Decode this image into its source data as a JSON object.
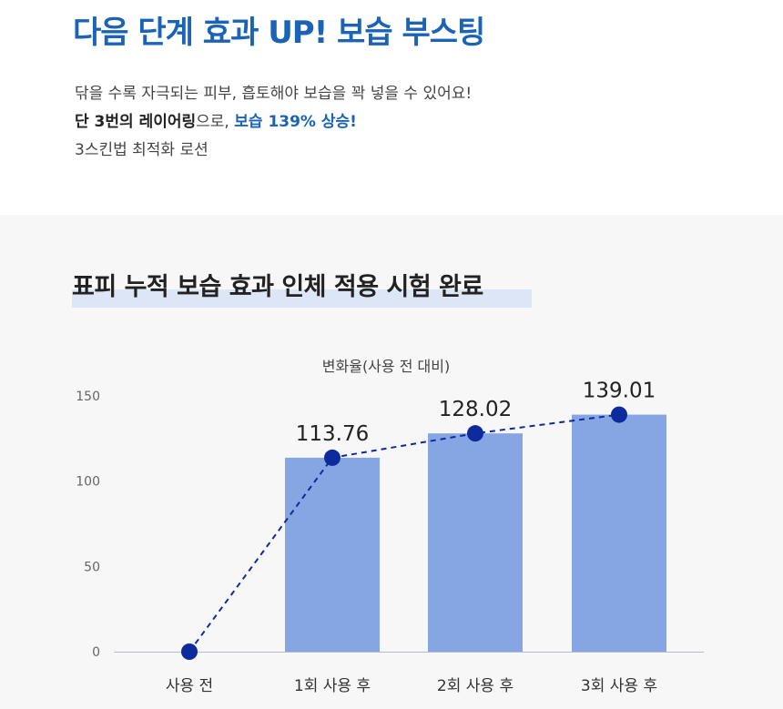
{
  "header": {
    "title": "다음 단계 효과 UP! 보습 부스팅",
    "line1": "닦을 수록 자극되는 피부, 흡토해야 보습을 꽉 넣을 수 있어요!",
    "line2_bold": "단 3번의 레이어링",
    "line2_mid": "으로, ",
    "line2_highlight": "보습 139% 상승!",
    "line3": "3스킨법 최적화 로션"
  },
  "section": {
    "title": "표피 누적 보습 효과 인체 적용 시험 완료"
  },
  "colors": {
    "accent": "#1a63b5",
    "bar": "#86a5e3",
    "line": "#0d2b9c",
    "highlight": "#dce6f6"
  },
  "chart_data": {
    "type": "bar",
    "title": "변화율(사용 전 대비)",
    "categories": [
      "사용 전",
      "1회 사용 후",
      "2회 사용 후",
      "3회 사용 후"
    ],
    "series": [
      {
        "type": "bar",
        "values": [
          0,
          113.76,
          128.02,
          139.01
        ]
      },
      {
        "type": "line",
        "values": [
          0,
          113.76,
          128.02,
          139.01
        ]
      }
    ],
    "data_labels": [
      "",
      "113.76",
      "128.02",
      "139.01"
    ],
    "yticks": [
      "0",
      "50",
      "100",
      "150"
    ],
    "ylim": [
      0,
      150
    ],
    "grid": false,
    "legend": "none"
  }
}
